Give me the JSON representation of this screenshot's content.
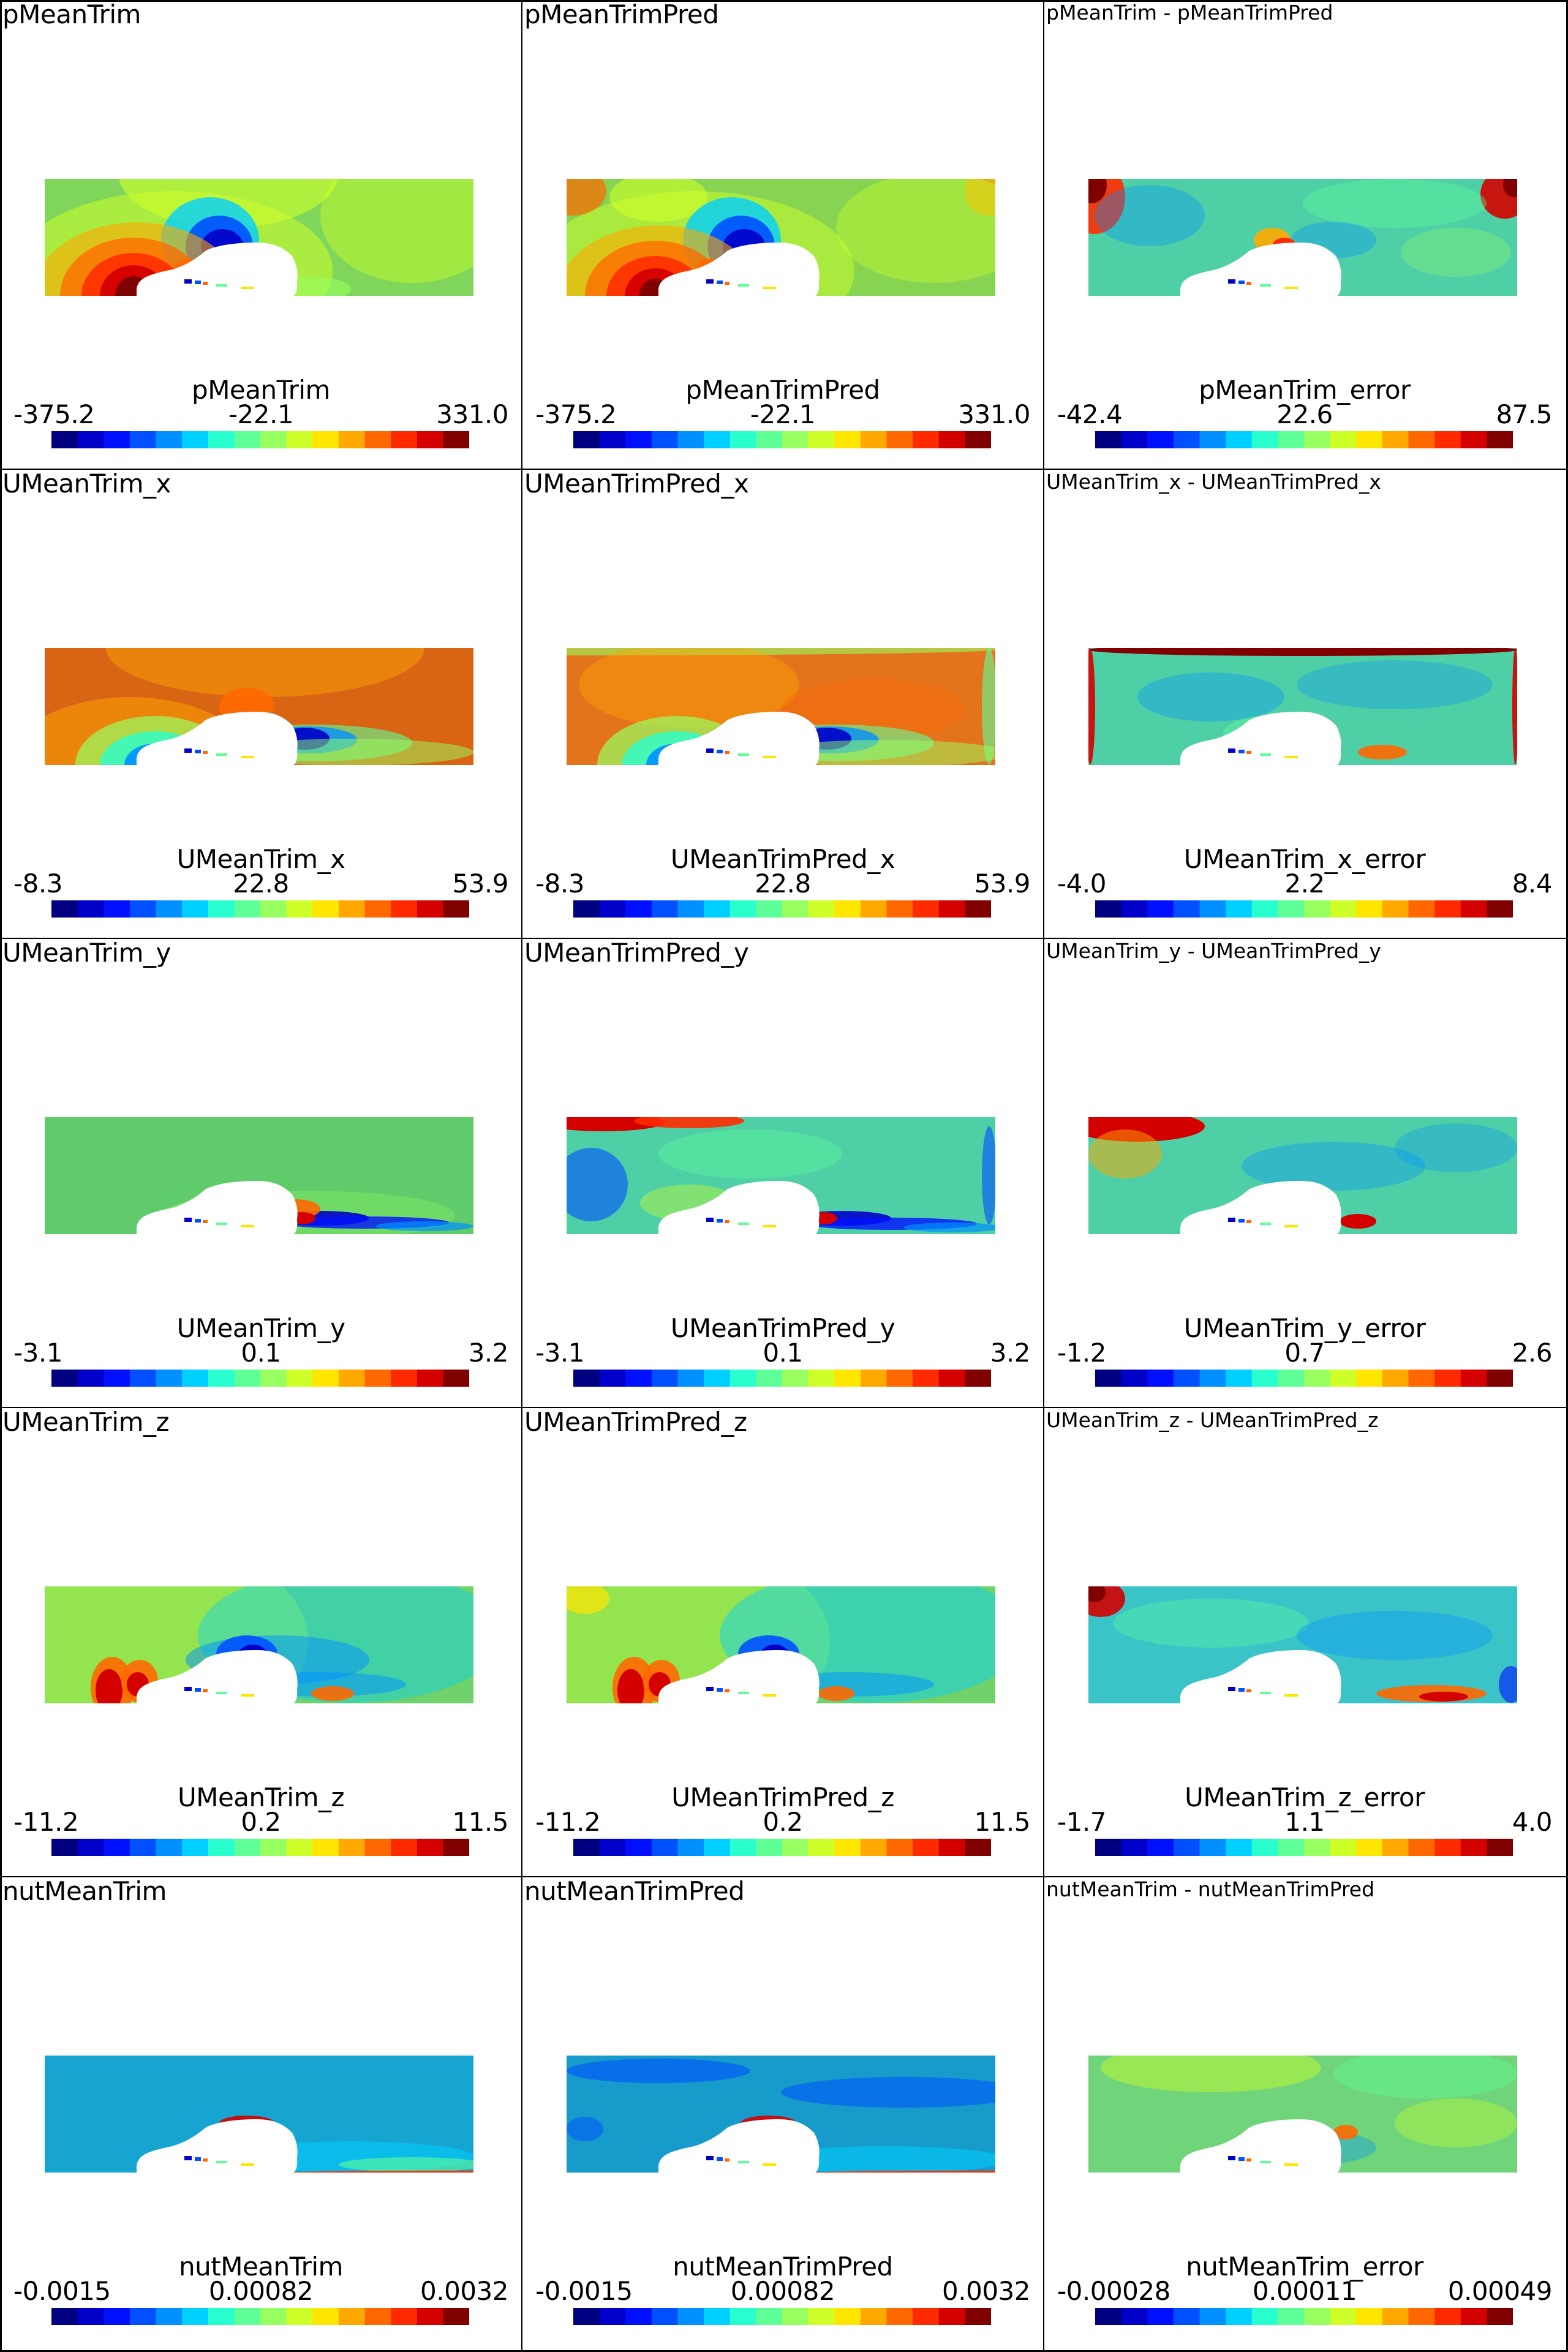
{
  "colormap": [
    "#000080",
    "#0000c8",
    "#0010ff",
    "#0050ff",
    "#0090ff",
    "#00d0ff",
    "#29ffce",
    "#5fff97",
    "#97ff5f",
    "#ceff29",
    "#ffe600",
    "#ffa800",
    "#ff6800",
    "#ff2a00",
    "#d40000",
    "#800000"
  ],
  "car_color": "#ffffff",
  "rows": [
    {
      "panels": [
        {
          "title": "pMeanTrim",
          "title_small": false,
          "bg": "#7fd65a",
          "cb_title": "pMeanTrim",
          "cb_min": "-375.2",
          "cb_mid": "-22.1",
          "cb_max": "331.0",
          "style": "p_true"
        },
        {
          "title": "pMeanTrimPred",
          "title_small": false,
          "bg": "#86d452",
          "cb_title": "pMeanTrimPred",
          "cb_min": "-375.2",
          "cb_mid": "-22.1",
          "cb_max": "331.0",
          "style": "p_pred"
        },
        {
          "title": "pMeanTrim - pMeanTrimPred",
          "title_small": true,
          "bg": "#4fcfa6",
          "cb_title": "pMeanTrim_error",
          "cb_min": "-42.4",
          "cb_mid": "22.6",
          "cb_max": "87.5",
          "style": "err_p"
        }
      ]
    },
    {
      "panels": [
        {
          "title": "UMeanTrim_x",
          "title_small": false,
          "bg": "#d86414",
          "cb_title": "UMeanTrim_x",
          "cb_min": "-8.3",
          "cb_mid": "22.8",
          "cb_max": "53.9",
          "style": "ux_true"
        },
        {
          "title": "UMeanTrimPred_x",
          "title_small": false,
          "bg": "#e4741c",
          "cb_title": "UMeanTrimPred_x",
          "cb_min": "-8.3",
          "cb_mid": "22.8",
          "cb_max": "53.9",
          "style": "ux_pred"
        },
        {
          "title": "UMeanTrim_x - UMeanTrimPred_x",
          "title_small": true,
          "bg": "#4fcfa6",
          "cb_title": "UMeanTrim_x_error",
          "cb_min": "-4.0",
          "cb_mid": "2.2",
          "cb_max": "8.4",
          "style": "err_ux"
        }
      ]
    },
    {
      "panels": [
        {
          "title": "UMeanTrim_y",
          "title_small": false,
          "bg": "#5fcb6a",
          "cb_title": "UMeanTrim_y",
          "cb_min": "-3.1",
          "cb_mid": "0.1",
          "cb_max": "3.2",
          "style": "uy_true"
        },
        {
          "title": "UMeanTrimPred_y",
          "title_small": false,
          "bg": "#4fcfa6",
          "cb_title": "UMeanTrimPred_y",
          "cb_min": "-3.1",
          "cb_mid": "0.1",
          "cb_max": "3.2",
          "style": "uy_pred"
        },
        {
          "title": "UMeanTrim_y - UMeanTrimPred_y",
          "title_small": true,
          "bg": "#4fcfa6",
          "cb_title": "UMeanTrim_y_error",
          "cb_min": "-1.2",
          "cb_mid": "0.7",
          "cb_max": "2.6",
          "style": "err_uy"
        }
      ]
    },
    {
      "panels": [
        {
          "title": "UMeanTrim_z",
          "title_small": false,
          "bg": "#6fd26a",
          "cb_title": "UMeanTrim_z",
          "cb_min": "-11.2",
          "cb_mid": "0.2",
          "cb_max": "11.5",
          "style": "uz_true"
        },
        {
          "title": "UMeanTrimPred_z",
          "title_small": false,
          "bg": "#6fd26a",
          "cb_title": "UMeanTrimPred_z",
          "cb_min": "-11.2",
          "cb_mid": "0.2",
          "cb_max": "11.5",
          "style": "uz_pred"
        },
        {
          "title": "UMeanTrim_z - UMeanTrimPred_z",
          "title_small": true,
          "bg": "#3ac4c8",
          "cb_title": "UMeanTrim_z_error",
          "cb_min": "-1.7",
          "cb_mid": "1.1",
          "cb_max": "4.0",
          "style": "err_uz"
        }
      ]
    },
    {
      "panels": [
        {
          "title": "nutMeanTrim",
          "title_small": false,
          "bg": "#16a4d0",
          "cb_title": "nutMeanTrim",
          "cb_min": "-0.0015",
          "cb_mid": "0.00082",
          "cb_max": "0.0032",
          "style": "nut_true"
        },
        {
          "title": "nutMeanTrimPred",
          "title_small": false,
          "bg": "#169bcb",
          "cb_title": "nutMeanTrimPred",
          "cb_min": "-0.0015",
          "cb_mid": "0.00082",
          "cb_max": "0.0032",
          "style": "nut_pred"
        },
        {
          "title": "nutMeanTrim - nutMeanTrimPred",
          "title_small": true,
          "bg": "#6fd47a",
          "cb_title": "nutMeanTrim_error",
          "cb_min": "-0.00028",
          "cb_mid": "0.00011",
          "cb_max": "0.00049",
          "style": "err_nut"
        }
      ]
    }
  ]
}
